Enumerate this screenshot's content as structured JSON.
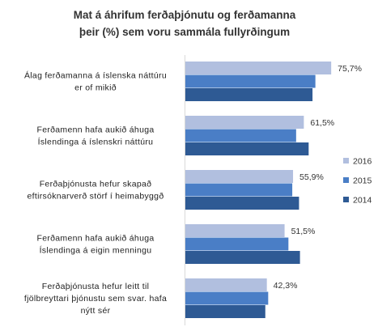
{
  "chart_data": {
    "type": "bar",
    "orientation": "horizontal",
    "title": [
      "Mat á áhrifum ferðaþjónutu og ferðamanna",
      "þeir (%) sem voru sammála fullyrðingum"
    ],
    "categories": [
      [
        "Álag ferðamanna á íslenska náttúru",
        "er of mikið"
      ],
      [
        "Ferðamenn hafa aukið áhuga",
        "Íslendinga á íslenskri náttúru"
      ],
      [
        "Ferðaþjónusta hefur skapað",
        "eftirsóknarverð störf í heimabyggð"
      ],
      [
        "Ferðamenn hafa aukið áhuga",
        "Íslendinga á eigin menningu"
      ],
      [
        "Ferðaþjónusta hefur leitt til",
        "fjölbreyttari þjónustu sem svar. hafa",
        "nýtt sér"
      ]
    ],
    "series": [
      {
        "name": "2016",
        "color": "#b1bfdf",
        "values": [
          75.7,
          61.5,
          55.9,
          51.5,
          42.3
        ]
      },
      {
        "name": "2015",
        "color": "#4a7ec6",
        "values": [
          67.5,
          57.5,
          55.5,
          53.5,
          43.0
        ]
      },
      {
        "name": "2014",
        "color": "#2e5a94",
        "values": [
          66.0,
          64.0,
          59.0,
          59.5,
          41.5
        ]
      }
    ],
    "data_labels": [
      "75,7%",
      "61,5%",
      "55,9%",
      "51,5%",
      "42,3%"
    ],
    "xlim": [
      0,
      100
    ],
    "grid": false,
    "legend_position": "right"
  }
}
